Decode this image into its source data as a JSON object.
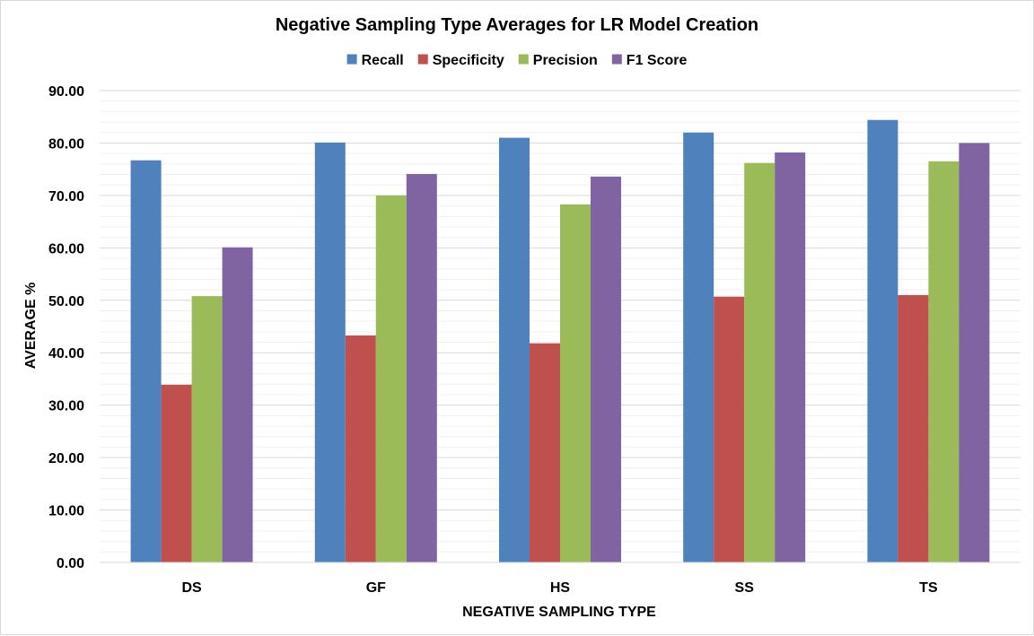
{
  "chart_data": {
    "type": "bar",
    "title": "Negative Sampling Type Averages for LR Model Creation",
    "xlabel": "NEGATIVE SAMPLING TYPE",
    "ylabel": "AVERAGE %",
    "categories": [
      "DS",
      "GF",
      "HS",
      "SS",
      "TS"
    ],
    "series": [
      {
        "name": "Recall",
        "color": "#4f81bd",
        "values": [
          76.7,
          80.1,
          81.0,
          82.0,
          84.4
        ]
      },
      {
        "name": "Specificity",
        "color": "#c0504d",
        "values": [
          33.9,
          43.3,
          41.8,
          50.7,
          51.0
        ]
      },
      {
        "name": "Precision",
        "color": "#9bbb59",
        "values": [
          50.8,
          70.0,
          68.3,
          76.2,
          76.5
        ]
      },
      {
        "name": "F1 Score",
        "color": "#8064a2",
        "values": [
          60.1,
          74.1,
          73.6,
          78.2,
          80.0
        ]
      }
    ],
    "ylim": [
      0,
      90
    ],
    "yticks": [
      "0.00",
      "10.00",
      "20.00",
      "30.00",
      "40.00",
      "50.00",
      "60.00",
      "70.00",
      "80.00",
      "90.00"
    ],
    "ytick_values": [
      0,
      10,
      20,
      30,
      40,
      50,
      60,
      70,
      80,
      90
    ],
    "grid": true,
    "legend_position": "top"
  }
}
